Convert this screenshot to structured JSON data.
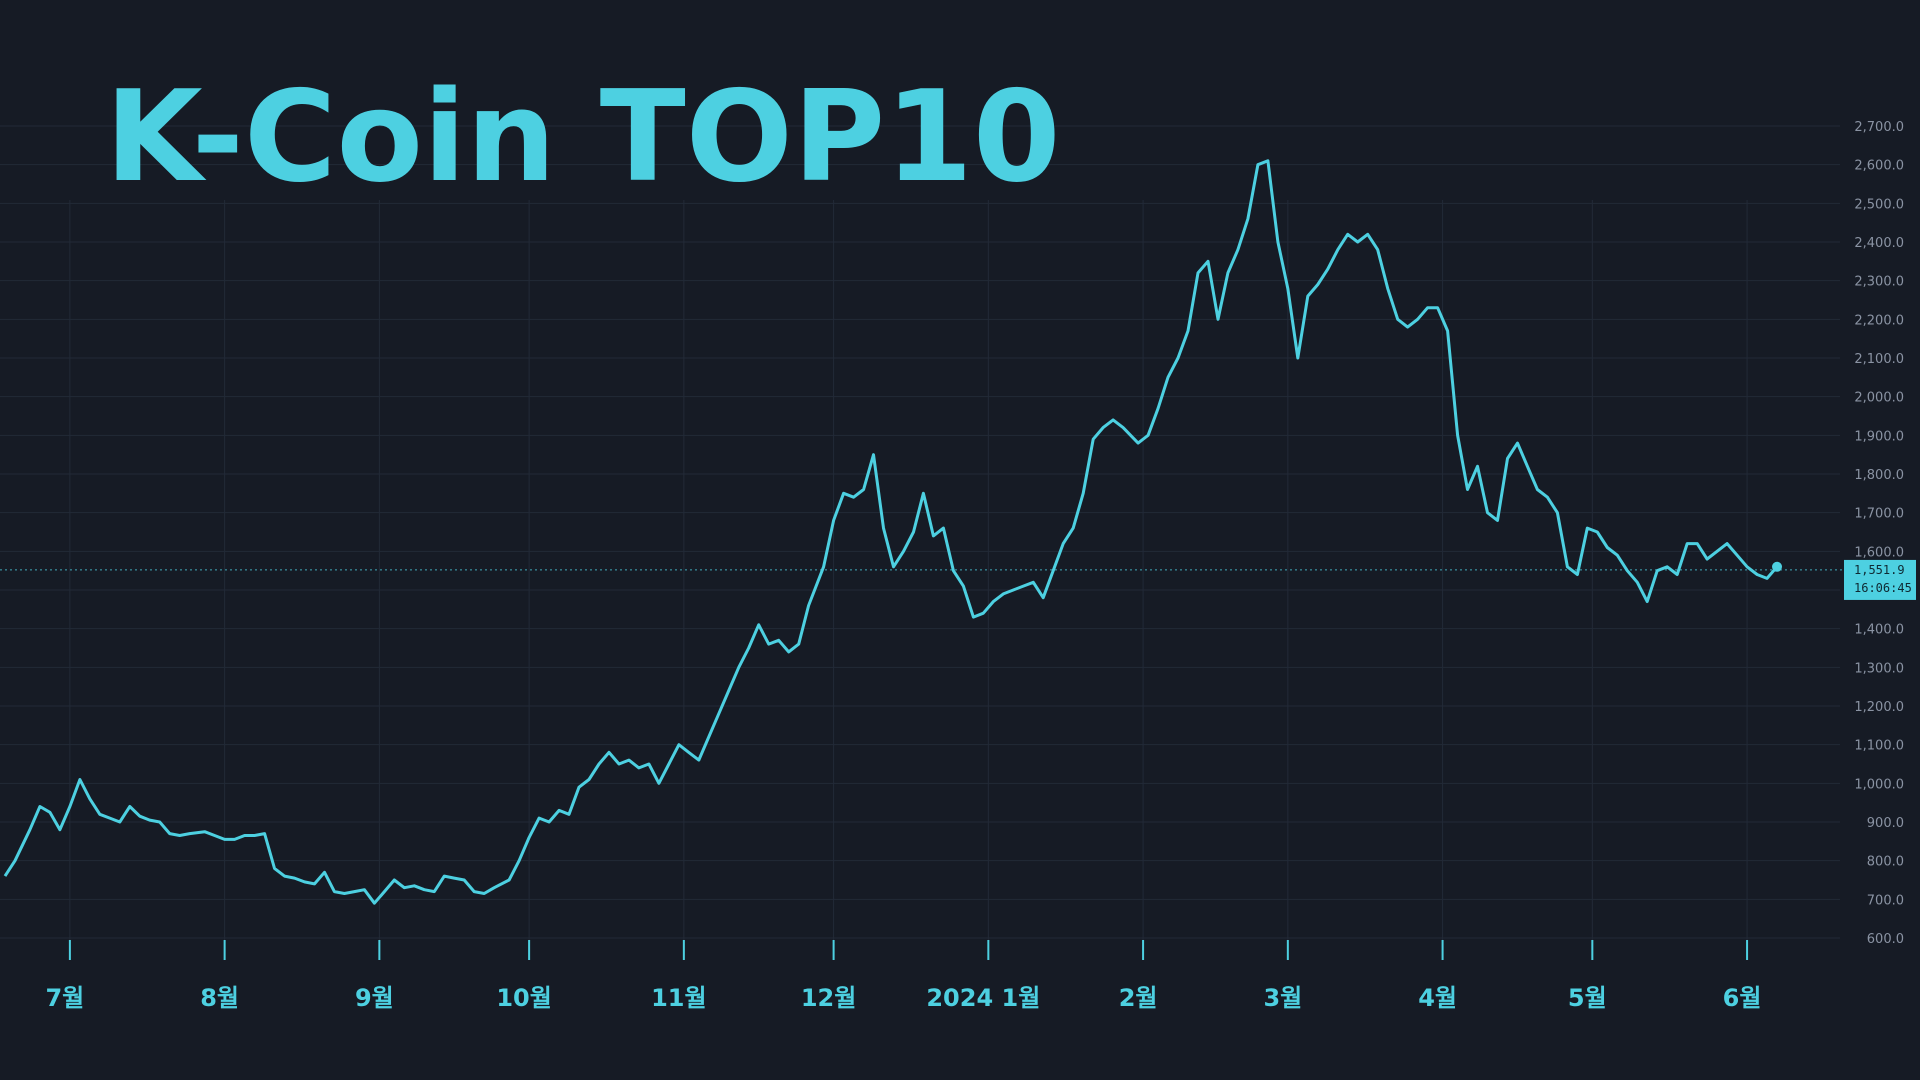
{
  "title": "K-Coin TOP10",
  "colors": {
    "background": "#161b25",
    "line": "#4dd0e1",
    "title": "#4dd0e1",
    "grid": "#222a37",
    "y_tick": "#8a93a3",
    "x_tick": "#4dd0e1",
    "price_badge": "#4dd0e1",
    "price_badge_text": "#0f2a33",
    "price_line": "#4dd0e1"
  },
  "chart_data": {
    "type": "line",
    "title": "K-Coin TOP10",
    "xlabel": "",
    "ylabel": "",
    "ylim": [
      560,
      2760
    ],
    "grid": true,
    "x_tick_labels": [
      "7월",
      "8월",
      "9월",
      "10월",
      "11월",
      "12월",
      "2024 1월",
      "2월",
      "3월",
      "4월",
      "5월",
      "6월"
    ],
    "y_tick_labels": [
      "600.0",
      "700.0",
      "800.0",
      "900.0",
      "1,000.0",
      "1,100.0",
      "1,200.0",
      "1,300.0",
      "1,400.0",
      "1,500.0",
      "1,600.0",
      "1,700.0",
      "1,800.0",
      "1,900.0",
      "2,000.0",
      "2,100.0",
      "2,200.0",
      "2,300.0",
      "2,400.0",
      "2,500.0",
      "2,600.0",
      "2,700.0"
    ],
    "y_tick_values": [
      600,
      700,
      800,
      900,
      1000,
      1100,
      1200,
      1300,
      1400,
      1500,
      1600,
      1700,
      1800,
      1900,
      2000,
      2100,
      2200,
      2300,
      2400,
      2500,
      2600,
      2700
    ],
    "current_price": {
      "value": 1551.9,
      "label": "1,551.9",
      "time": "16:06:45"
    },
    "series": [
      {
        "x": [
          "2023-06-18",
          "2023-06-20",
          "2023-06-23",
          "2023-06-25",
          "2023-06-27",
          "2023-06-29",
          "2023-07-01",
          "2023-07-03",
          "2023-07-05",
          "2023-07-07",
          "2023-07-09",
          "2023-07-11",
          "2023-07-13",
          "2023-07-15",
          "2023-07-17",
          "2023-07-19",
          "2023-07-21",
          "2023-07-23",
          "2023-07-25",
          "2023-07-28",
          "2023-07-30",
          "2023-08-01",
          "2023-08-03",
          "2023-08-05",
          "2023-08-07",
          "2023-08-09",
          "2023-08-11",
          "2023-08-13",
          "2023-08-15",
          "2023-08-17",
          "2023-08-19",
          "2023-08-21",
          "2023-08-23",
          "2023-08-25",
          "2023-08-27",
          "2023-08-29",
          "2023-08-31",
          "2023-09-02",
          "2023-09-04",
          "2023-09-06",
          "2023-09-08",
          "2023-09-10",
          "2023-09-12",
          "2023-09-14",
          "2023-09-16",
          "2023-09-18",
          "2023-09-20",
          "2023-09-22",
          "2023-09-24",
          "2023-09-27",
          "2023-09-29",
          "2023-10-01",
          "2023-10-03",
          "2023-10-05",
          "2023-10-07",
          "2023-10-09",
          "2023-10-11",
          "2023-10-13",
          "2023-10-15",
          "2023-10-17",
          "2023-10-19",
          "2023-10-21",
          "2023-10-23",
          "2023-10-25",
          "2023-10-27",
          "2023-10-29",
          "2023-10-31",
          "2023-11-02",
          "2023-11-04",
          "2023-11-06",
          "2023-11-08",
          "2023-11-10",
          "2023-11-12",
          "2023-11-14",
          "2023-11-16",
          "2023-11-18",
          "2023-11-20",
          "2023-11-22",
          "2023-11-24",
          "2023-11-26",
          "2023-11-29",
          "2023-12-01",
          "2023-12-03",
          "2023-12-05",
          "2023-12-07",
          "2023-12-09",
          "2023-12-11",
          "2023-12-13",
          "2023-12-15",
          "2023-12-17",
          "2023-12-19",
          "2023-12-21",
          "2023-12-23",
          "2023-12-25",
          "2023-12-27",
          "2023-12-29",
          "2023-12-31",
          "2024-01-02",
          "2024-01-04",
          "2024-01-06",
          "2024-01-08",
          "2024-01-10",
          "2024-01-12",
          "2024-01-14",
          "2024-01-16",
          "2024-01-18",
          "2024-01-20",
          "2024-01-22",
          "2024-01-24",
          "2024-01-26",
          "2024-01-28",
          "2024-01-31",
          "2024-02-02",
          "2024-02-04",
          "2024-02-06",
          "2024-02-08",
          "2024-02-10",
          "2024-02-12",
          "2024-02-14",
          "2024-02-16",
          "2024-02-18",
          "2024-02-20",
          "2024-02-22",
          "2024-02-24",
          "2024-02-26",
          "2024-02-28",
          "2024-03-01",
          "2024-03-03",
          "2024-03-05",
          "2024-03-07",
          "2024-03-09",
          "2024-03-11",
          "2024-03-13",
          "2024-03-15",
          "2024-03-17",
          "2024-03-19",
          "2024-03-21",
          "2024-03-23",
          "2024-03-25",
          "2024-03-27",
          "2024-03-29",
          "2024-03-31",
          "2024-04-02",
          "2024-04-04",
          "2024-04-06",
          "2024-04-08",
          "2024-04-10",
          "2024-04-12",
          "2024-04-14",
          "2024-04-16",
          "2024-04-18",
          "2024-04-20",
          "2024-04-22",
          "2024-04-24",
          "2024-04-26",
          "2024-04-28",
          "2024-04-30",
          "2024-05-02",
          "2024-05-04",
          "2024-05-06",
          "2024-05-08",
          "2024-05-10",
          "2024-05-12",
          "2024-05-14",
          "2024-05-16",
          "2024-05-18",
          "2024-05-20",
          "2024-05-22",
          "2024-05-24",
          "2024-05-26",
          "2024-05-28",
          "2024-05-30",
          "2024-06-01",
          "2024-06-03",
          "2024-06-05",
          "2024-06-07"
        ],
        "y": [
          760,
          800,
          880,
          940,
          925,
          880,
          940,
          1010,
          960,
          920,
          910,
          900,
          940,
          915,
          905,
          900,
          870,
          865,
          870,
          875,
          865,
          855,
          855,
          865,
          865,
          870,
          780,
          760,
          755,
          745,
          740,
          770,
          720,
          715,
          720,
          725,
          690,
          720,
          750,
          730,
          735,
          725,
          720,
          760,
          755,
          750,
          720,
          715,
          730,
          750,
          800,
          860,
          910,
          900,
          930,
          920,
          990,
          1010,
          1050,
          1080,
          1050,
          1060,
          1040,
          1050,
          1000,
          1050,
          1100,
          1080,
          1060,
          1120,
          1180,
          1240,
          1300,
          1350,
          1410,
          1360,
          1370,
          1340,
          1360,
          1460,
          1560,
          1680,
          1750,
          1740,
          1760,
          1850,
          1660,
          1560,
          1600,
          1650,
          1750,
          1640,
          1660,
          1550,
          1510,
          1430,
          1440,
          1470,
          1490,
          1500,
          1510,
          1520,
          1480,
          1550,
          1620,
          1660,
          1750,
          1890,
          1920,
          1940,
          1920,
          1880,
          1900,
          1970,
          2050,
          2100,
          2170,
          2320,
          2350,
          2200,
          2320,
          2380,
          2460,
          2600,
          2610,
          2400,
          2280,
          2100,
          2260,
          2290,
          2330,
          2380,
          2420,
          2400,
          2420,
          2380,
          2280,
          2200,
          2180,
          2200,
          2230,
          2230,
          2170,
          1900,
          1760,
          1820,
          1700,
          1680,
          1840,
          1880,
          1820,
          1760,
          1740,
          1700,
          1560,
          1540,
          1660,
          1650,
          1610,
          1590,
          1550,
          1520,
          1470,
          1550,
          1560,
          1540,
          1620,
          1620,
          1580,
          1600,
          1620,
          1590,
          1560,
          1540,
          1530,
          1560
        ]
      }
    ]
  }
}
